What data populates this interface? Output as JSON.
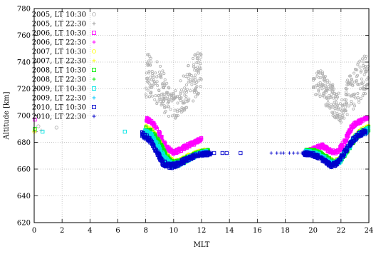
{
  "chart_data": {
    "type": "scatter",
    "xlabel": "MLT",
    "ylabel": "Altitude [km]",
    "xlim": [
      0,
      24
    ],
    "ylim": [
      620,
      780
    ],
    "xticks": [
      "0",
      "2",
      "4",
      "6",
      "8",
      "10",
      "12",
      "14",
      "16",
      "18",
      "20",
      "22",
      "24"
    ],
    "yticks": [
      "620",
      "640",
      "660",
      "680",
      "700",
      "720",
      "740",
      "760",
      "780"
    ],
    "grid": true,
    "legend_position": "top-left",
    "series": [
      {
        "name": "2005, LT 10:30",
        "color": "#b0b0b0",
        "marker": "circle",
        "points": [
          [
            0.05,
            689
          ],
          [
            0.3,
            692
          ],
          [
            1.6,
            691
          ]
        ],
        "bands": [
          {
            "x": [
              8.0,
              8.5,
              9.0,
              9.5,
              10.0,
              10.5,
              11.0,
              11.5,
              12.0
            ],
            "lo": [
              712,
              713,
              706,
              699,
              695,
              700,
              706,
              712,
              718
            ],
            "hi": [
              748,
              745,
              739,
              729,
              719,
              728,
              737,
              746,
              748
            ]
          },
          {
            "x": [
              20.0,
              20.5,
              21.0,
              21.5,
              22.0,
              22.5,
              23.0,
              23.5,
              24.0
            ],
            "lo": [
              712,
              713,
              706,
              699,
              695,
              700,
              706,
              712,
              718
            ],
            "hi": [
              732,
              735,
              729,
              722,
              716,
              728,
              737,
              746,
              748
            ]
          }
        ]
      },
      {
        "name": "2005, LT 22:30",
        "color": "#a0a0a0",
        "marker": "plus",
        "points": [
          [
            0.02,
            688
          ],
          [
            0.15,
            688
          ],
          [
            0.5,
            689
          ]
        ],
        "bands": []
      },
      {
        "name": "2006, LT 10:30",
        "color": "#ff00ff",
        "marker": "square",
        "points": [
          [
            0.05,
            697
          ]
        ],
        "bands": [
          {
            "x": [
              8.0,
              8.5,
              9.0,
              9.5,
              10.0,
              10.5,
              11.0,
              11.5,
              12.0
            ],
            "lo": [
              696,
              693,
              684,
              674,
              671,
              673,
              676,
              678,
              681
            ],
            "hi": [
              699,
              696,
              688,
              678,
              674,
              676,
              679,
              681,
              684
            ]
          },
          {
            "x": [
              19.7,
              20.2,
              20.7,
              21.2,
              21.7,
              22.2,
              22.7,
              23.2,
              23.7,
              24.0
            ],
            "lo": [
              672,
              674,
              676,
              672,
              671,
              677,
              688,
              693,
              696,
              697
            ],
            "hi": [
              675,
              677,
              679,
              675,
              674,
              681,
              692,
              697,
              699,
              699
            ]
          }
        ]
      },
      {
        "name": "2006, LT 22:30",
        "color": "#ff00ff",
        "marker": "plus",
        "points": [],
        "bands": []
      },
      {
        "name": "2007, LT 10:30",
        "color": "#ffff00",
        "marker": "circle",
        "points": [
          [
            0.0,
            688
          ],
          [
            0.05,
            689
          ]
        ],
        "bands": [
          {
            "x": [
              8.0,
              8.5,
              9.0,
              9.5,
              10.0,
              10.5,
              11.0,
              11.5,
              12.0,
              12.5
            ],
            "lo": [
              689,
              686,
              678,
              668,
              663,
              664,
              667,
              670,
              672,
              672
            ],
            "hi": [
              693,
              690,
              682,
              672,
              667,
              668,
              671,
              673,
              675,
              675
            ]
          },
          {
            "x": [
              19.5,
              20.0,
              20.5,
              21.0,
              21.5,
              22.0,
              22.5,
              23.0,
              23.5,
              24.0
            ],
            "lo": [
              672,
              672,
              670,
              667,
              664,
              666,
              674,
              682,
              687,
              689
            ],
            "hi": [
              675,
              675,
              673,
              670,
              667,
              670,
              678,
              686,
              691,
              693
            ]
          }
        ]
      },
      {
        "name": "2007, LT 22:30",
        "color": "#ffff00",
        "marker": "plus",
        "points": [],
        "bands": []
      },
      {
        "name": "2008, LT 10:30",
        "color": "#00ee00",
        "marker": "square",
        "points": [
          [
            0.05,
            690
          ]
        ],
        "bands": [
          {
            "x": [
              8.0,
              8.5,
              9.0,
              9.5,
              10.0,
              10.5,
              11.0,
              11.5,
              12.0,
              12.5
            ],
            "lo": [
              688,
              685,
              677,
              667,
              662,
              663,
              666,
              669,
              671,
              672
            ],
            "hi": [
              692,
              689,
              681,
              671,
              666,
              667,
              670,
              672,
              674,
              675
            ]
          },
          {
            "x": [
              19.5,
              20.0,
              20.5,
              21.0,
              21.5,
              22.0,
              22.5,
              23.0,
              23.5,
              24.0
            ],
            "lo": [
              672,
              672,
              670,
              667,
              663,
              665,
              673,
              681,
              686,
              688
            ],
            "hi": [
              675,
              675,
              673,
              670,
              666,
              669,
              677,
              685,
              690,
              692
            ]
          }
        ]
      },
      {
        "name": "2008, LT 22:30",
        "color": "#00ee00",
        "marker": "plus",
        "points": [],
        "bands": []
      },
      {
        "name": "2009, LT 10:30",
        "color": "#00e5e5",
        "marker": "square",
        "points": [
          [
            0.6,
            688
          ],
          [
            6.5,
            688
          ]
        ],
        "bands": [
          {
            "x": [
              7.9,
              8.4,
              8.9,
              9.4,
              9.9,
              10.4,
              10.9,
              11.4,
              11.9,
              12.4
            ],
            "lo": [
              686,
              683,
              675,
              665,
              661,
              662,
              665,
              668,
              670,
              671
            ],
            "hi": [
              690,
              687,
              679,
              669,
              665,
              666,
              669,
              671,
              673,
              674
            ]
          },
          {
            "x": [
              19.4,
              19.9,
              20.4,
              20.9,
              21.4,
              21.9,
              22.4,
              22.9,
              23.4,
              24.0
            ],
            "lo": [
              671,
              671,
              669,
              666,
              662,
              664,
              672,
              680,
              685,
              687
            ],
            "hi": [
              674,
              674,
              672,
              669,
              665,
              668,
              676,
              684,
              689,
              691
            ]
          }
        ]
      },
      {
        "name": "2009, LT 22:30",
        "color": "#00c8ff",
        "marker": "plus",
        "points": [],
        "bands": []
      },
      {
        "name": "2010, LT 10:30",
        "color": "#0000cc",
        "marker": "square",
        "points": [
          [
            12.9,
            672
          ],
          [
            13.5,
            672
          ],
          [
            13.8,
            672
          ],
          [
            14.8,
            672
          ]
        ],
        "bands": [
          {
            "x": [
              7.7,
              8.2,
              8.7,
              9.2,
              9.7,
              10.2,
              10.7,
              11.2,
              11.7,
              12.2,
              12.7
            ],
            "lo": [
              684,
              681,
              673,
              663,
              660,
              661,
              664,
              667,
              669,
              670,
              670
            ],
            "hi": [
              688,
              685,
              677,
              667,
              664,
              665,
              668,
              670,
              672,
              673,
              673
            ]
          },
          {
            "x": [
              19.3,
              19.8,
              20.3,
              20.8,
              21.3,
              21.8,
              22.3,
              22.8,
              23.3,
              23.8
            ],
            "lo": [
              670,
              670,
              668,
              665,
              661,
              663,
              671,
              679,
              684,
              686
            ],
            "hi": [
              673,
              673,
              671,
              668,
              664,
              667,
              675,
              683,
              688,
              690
            ]
          }
        ]
      },
      {
        "name": "2010, LT 22:30",
        "color": "#0000cc",
        "marker": "plus",
        "points": [
          [
            17.0,
            672
          ],
          [
            17.4,
            672
          ],
          [
            17.7,
            672
          ],
          [
            17.9,
            672
          ],
          [
            18.3,
            672
          ],
          [
            18.6,
            672
          ],
          [
            18.9,
            672
          ],
          [
            19.2,
            672
          ]
        ],
        "bands": []
      }
    ]
  }
}
